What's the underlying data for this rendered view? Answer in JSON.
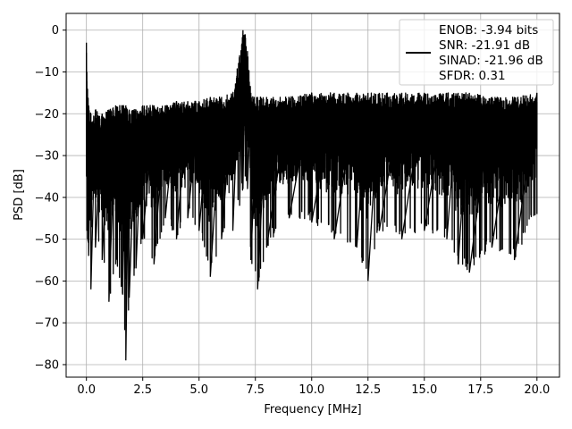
{
  "chart_data": {
    "type": "line",
    "xlabel": "Frequency [MHz]",
    "ylabel": "PSD [dB]",
    "xlim": [
      -0.9,
      21.0
    ],
    "ylim": [
      -83,
      4
    ],
    "xticks": [
      0.0,
      2.5,
      5.0,
      7.5,
      10.0,
      12.5,
      15.0,
      17.5,
      20.0
    ],
    "xtick_labels": [
      "0.0",
      "2.5",
      "5.0",
      "7.5",
      "10.0",
      "12.5",
      "15.0",
      "17.5",
      "20.0"
    ],
    "yticks": [
      0,
      -10,
      -20,
      -30,
      -40,
      -50,
      -60,
      -70,
      -80
    ],
    "ytick_labels": [
      "0",
      "−10",
      "−20",
      "−30",
      "−40",
      "−50",
      "−60",
      "−70",
      "−80"
    ],
    "grid": true,
    "legend_placement": "top-right",
    "series": [
      {
        "name": "ENOB: -3.94 bits\nSNR: -21.91 dB\nSINAD: -21.96 dB\nSFDR: 0.31",
        "color": "#000000",
        "x": [
          0.0,
          0.02,
          0.05,
          0.1,
          0.2,
          0.4,
          0.7,
          1.0,
          1.3,
          1.6,
          1.75,
          1.9,
          2.2,
          2.5,
          3.0,
          3.5,
          4.0,
          4.5,
          5.0,
          5.5,
          6.0,
          6.5,
          6.8,
          6.95,
          7.05,
          7.15,
          7.3,
          7.6,
          8.0,
          9.0,
          10.0,
          11.0,
          12.0,
          12.5,
          13.0,
          14.0,
          15.0,
          16.0,
          16.5,
          17.0,
          18.0,
          19.0,
          20.0
        ],
        "upper": [
          -3,
          -10,
          -14,
          -18,
          -20,
          -19,
          -20,
          -19,
          -18,
          -18,
          -18,
          -19,
          -19,
          -18,
          -18,
          -18,
          -17,
          -17,
          -17,
          -16,
          -16,
          -15,
          -6,
          0,
          -1,
          -5,
          -15,
          -16,
          -16,
          -16,
          -15,
          -15,
          -15,
          -15,
          -15,
          -15,
          -15,
          -15,
          -15,
          -15,
          -16,
          -16,
          -15
        ],
        "lower": [
          -35,
          -48,
          -50,
          -54,
          -62,
          -52,
          -55,
          -65,
          -56,
          -63,
          -79,
          -64,
          -57,
          -50,
          -56,
          -45,
          -50,
          -45,
          -48,
          -59,
          -50,
          -48,
          -42,
          -38,
          -35,
          -38,
          -55,
          -62,
          -52,
          -45,
          -46,
          -50,
          -52,
          -60,
          -48,
          -50,
          -48,
          -50,
          -56,
          -58,
          -52,
          -55,
          -44
        ]
      }
    ]
  }
}
